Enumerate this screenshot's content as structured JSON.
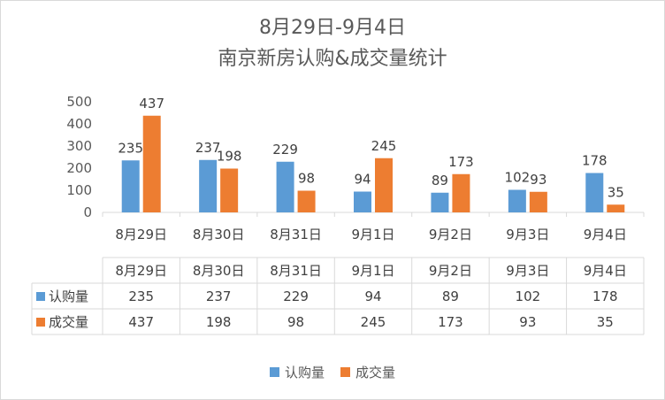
{
  "colors": {
    "series1": "#5b9bd5",
    "series2": "#ed7d31"
  },
  "chart_data": {
    "type": "bar",
    "title": "8月29日-9月4日",
    "subtitle": "南京新房认购&成交量统计",
    "categories": [
      "8月29日",
      "8月30日",
      "8月31日",
      "9月1日",
      "9月2日",
      "9月3日",
      "9月4日"
    ],
    "series": [
      {
        "name": "认购量",
        "values": [
          235,
          237,
          229,
          94,
          89,
          102,
          178
        ]
      },
      {
        "name": "成交量",
        "values": [
          437,
          198,
          98,
          245,
          173,
          93,
          35
        ]
      }
    ],
    "y_ticks": [
      "0",
      "100",
      "200",
      "300",
      "400",
      "500"
    ],
    "ylim": [
      0,
      500
    ],
    "grid": false,
    "data_table": true,
    "legend_position": "bottom"
  }
}
